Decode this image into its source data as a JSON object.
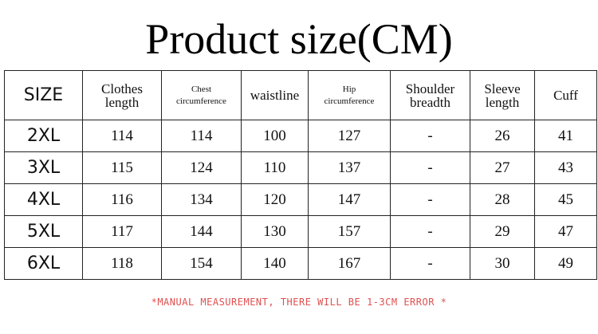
{
  "title": "Product size(CM)",
  "table": {
    "header": [
      [
        "SIZE"
      ],
      [
        "Clothes",
        "length"
      ],
      [
        "Chest",
        "circumference"
      ],
      [
        "waistline"
      ],
      [
        "Hip",
        "circumference"
      ],
      [
        "Shoulder",
        "breadth"
      ],
      [
        "Sleeve",
        "length"
      ],
      [
        "Cuff"
      ]
    ],
    "rows": [
      [
        "2XL",
        114,
        114,
        100,
        127,
        "-",
        26,
        41
      ],
      [
        "3XL",
        115,
        124,
        110,
        137,
        "-",
        27,
        43
      ],
      [
        "4XL",
        116,
        134,
        120,
        147,
        "-",
        28,
        45
      ],
      [
        "5XL",
        117,
        144,
        130,
        157,
        "-",
        29,
        47
      ],
      [
        "6XL",
        118,
        154,
        140,
        167,
        "-",
        30,
        49
      ]
    ]
  },
  "footnote": "*MANUAL MEASUREMENT, THERE WILL BE 1-3CM ERROR *"
}
